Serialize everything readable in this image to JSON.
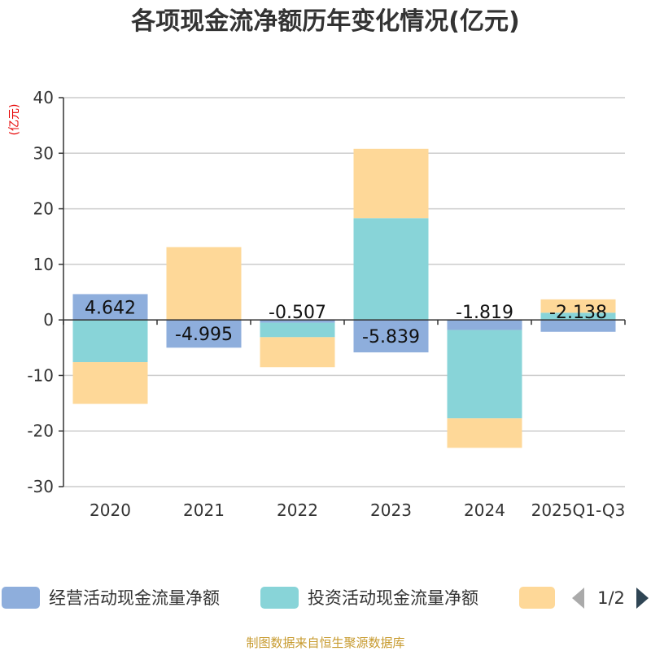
{
  "chart_data": {
    "type": "bar",
    "stacked": true,
    "title": "各项现金流净额历年变化情况(亿元)",
    "ylabel": "(亿元)",
    "xlabel": "",
    "ylim": [
      -30,
      40
    ],
    "yticks": [
      40,
      30,
      20,
      10,
      0,
      -10,
      -20,
      -30
    ],
    "categories": [
      "2020",
      "2021",
      "2022",
      "2023",
      "2024",
      "2025Q1-Q3"
    ],
    "series": [
      {
        "name": "经营活动现金流量净额",
        "color": "#8eaedc",
        "values": [
          4.642,
          -4.995,
          -0.507,
          -5.839,
          -1.819,
          -2.138
        ],
        "labels": [
          "4.642",
          "-4.995",
          "-0.507",
          "-5.839",
          "-1.819",
          "-2.138"
        ]
      },
      {
        "name": "投资活动现金流量净额",
        "color": "#88d4d8",
        "values": [
          -7.6,
          0,
          -2.6,
          18.3,
          -15.9,
          1.3
        ]
      },
      {
        "name": "",
        "color": "#fed898",
        "values": [
          -7.5,
          13.1,
          -5.4,
          12.5,
          -5.3,
          2.4
        ]
      }
    ],
    "legend": {
      "position": "bottom",
      "page": "1/2"
    },
    "source": "制图数据来自恒生聚源数据库"
  }
}
